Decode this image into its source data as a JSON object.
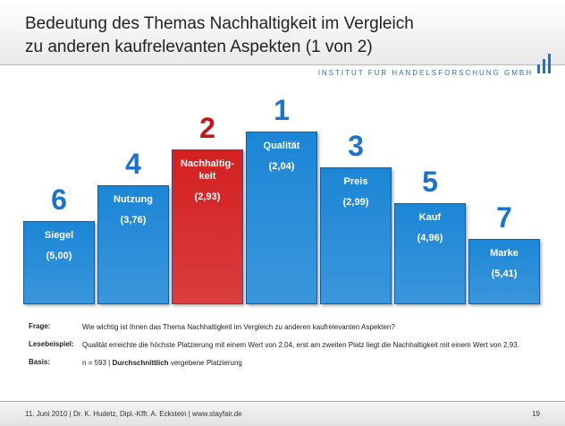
{
  "header": {
    "title": [
      "Bedeutung des Themas Nachhaltigkeit im Vergleich",
      "zu anderen kaufrelevanten Aspekten (1 von 2)"
    ],
    "logo": "INSTITUT FUR HANDELSFORSCHUNG GMBH"
  },
  "chart_data": {
    "type": "bar",
    "categories": [
      "Siegel",
      "Nutzung",
      "Nachhaltig-keit",
      "Qualität",
      "Preis",
      "Kauf",
      "Marke"
    ],
    "values": [
      5.0,
      3.76,
      2.93,
      2.04,
      2.99,
      4.96,
      5.41
    ],
    "value_labels": [
      "(5,00)",
      "(3,76)",
      "(2,93)",
      "(2,04)",
      "(2,99)",
      "(4,96)",
      "(5,41)"
    ],
    "ranks": [
      6,
      4,
      2,
      1,
      3,
      5,
      7
    ],
    "colors": [
      "#1c86d6",
      "#1c86d6",
      "#d42020",
      "#1c86d6",
      "#1c86d6",
      "#1c86d6",
      "#1c86d6"
    ],
    "rank_colors": [
      "#1b74c8",
      "#1b74c8",
      "#c3161d",
      "#1b74c8",
      "#1b74c8",
      "#1b74c8",
      "#1b74c8"
    ]
  },
  "notes": {
    "frage": [
      "Frage:",
      "Wie wichtig ist Ihnen das Thema Nachhaltigkeit im Vergleich zu anderen kaufrelevanten Aspekten?"
    ],
    "lesebeispiel": [
      "Lesebeispiel:",
      "Qualität erreichte die höchste Platzierung mit einem Wert von 2,04, erst am zweiten Platz liegt die Nachhaltigkeit mit einem Wert von 2,93."
    ],
    "basis": [
      "Basis:",
      "n = 593 |",
      "Durchschnittlich",
      "vergebene Platzierung"
    ]
  },
  "footer": {
    "text": "11. Juni 2010 | Dr. K. Hudetz, Dipl.-Kffr. A. Eckstein | www.stayfair.de",
    "page": "19"
  }
}
